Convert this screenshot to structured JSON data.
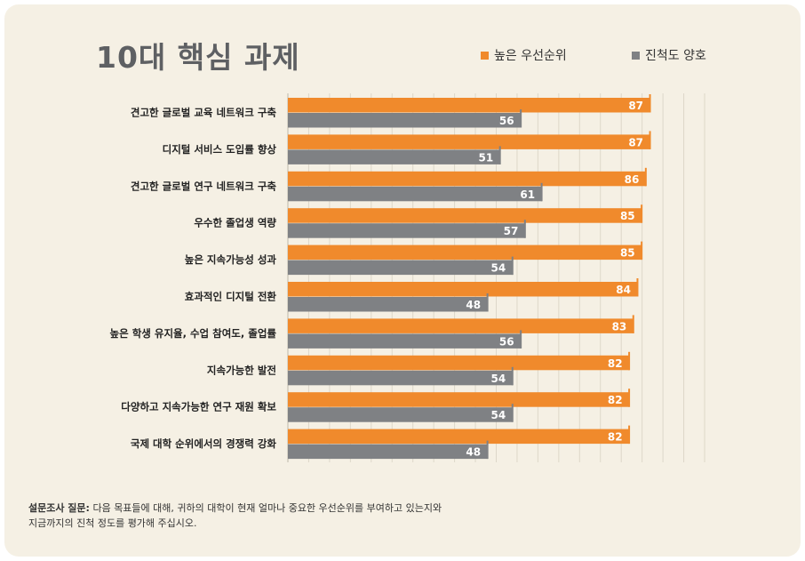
{
  "footnote": {
    "label": "설문조사 질문:",
    "text_line1": "다음 목표들에 대해, 귀하의 대학이 현재 얼마나 중요한 우선순위를 부여하고 있는지와",
    "text_line2": "지금까지의 진척 정도를 평가해 주십시오."
  },
  "colors": {
    "priority": "#f08a2c",
    "progress": "#7f8184",
    "background": "#f5f0e4",
    "title": "#5e6063"
  },
  "chart_data": {
    "type": "bar",
    "orientation": "horizontal",
    "title": "10대 핵심 과제",
    "categories": [
      "견고한 글로벌 교육 네트워크 구축",
      "디지털 서비스 도입률 향상",
      "견고한 글로벌 연구 네트워크 구축",
      "우수한 졸업생 역량",
      "높은 지속가능성 성과",
      "효과적인 디지털 전환",
      "높은 학생 유지율, 수업 참여도, 졸업률",
      "지속가능한 발전",
      "다양하고 지속가능한 연구 재원 확보",
      "국제 대학 순위에서의 경쟁력 강화"
    ],
    "series": [
      {
        "name": "높은 우선순위",
        "values": [
          87,
          87,
          86,
          85,
          85,
          84,
          83,
          82,
          82,
          82
        ]
      },
      {
        "name": "진척도 양호",
        "values": [
          56,
          51,
          61,
          57,
          54,
          48,
          56,
          54,
          54,
          48
        ]
      }
    ],
    "xlim": [
      0,
      100
    ],
    "grid": true,
    "legend_position": "top-right"
  }
}
